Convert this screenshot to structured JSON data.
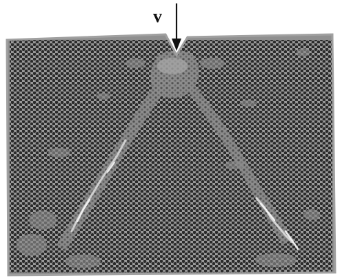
{
  "figure": {
    "velocity_label": "v",
    "colors": {
      "background": "#ffffff",
      "atom_fill": "#2a2a2a",
      "lattice_gap": "#9a9a9a",
      "damaged_region": "#8c8c8c",
      "bright_streak": "#e6e6e6",
      "arrow": "#111111"
    }
  }
}
